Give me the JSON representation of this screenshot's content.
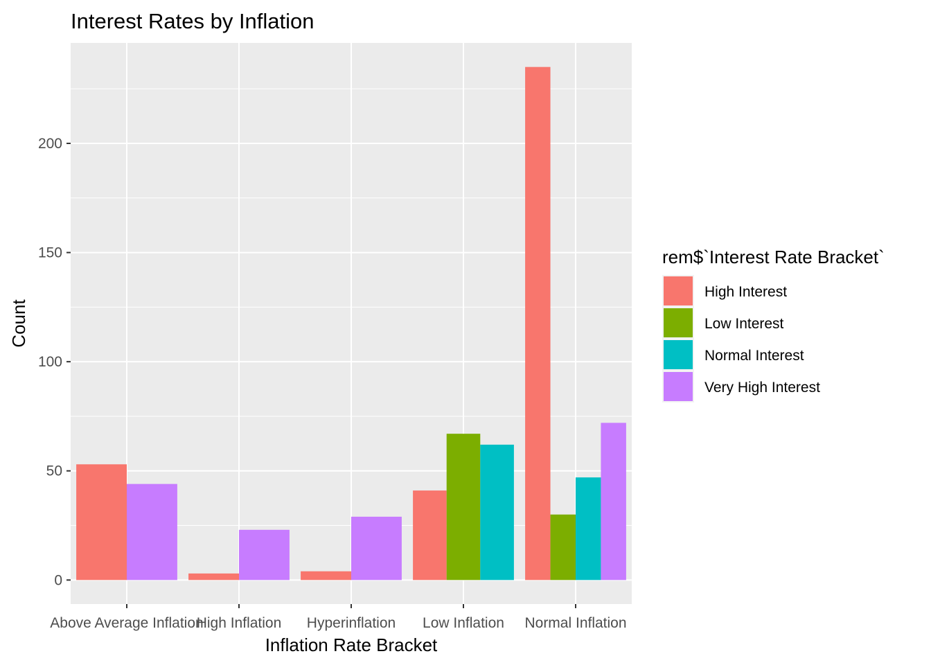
{
  "chart_data": {
    "type": "bar",
    "title": "Interest Rates by Inflation",
    "xlabel": "Inflation Rate Bracket",
    "ylabel": "Count",
    "ylim": [
      -11,
      246
    ],
    "yticks": [
      0,
      50,
      100,
      150,
      200
    ],
    "categories": [
      "Above Average Inflation",
      "High Inflation",
      "Hyperinflation",
      "Low Inflation",
      "Normal Inflation"
    ],
    "legend_title": "rem$`Interest Rate Bracket`",
    "legend_position": "right",
    "grid": true,
    "series": [
      {
        "name": "High Interest",
        "color": "#F8766D",
        "values": [
          53,
          3,
          4,
          41,
          235
        ]
      },
      {
        "name": "Low Interest",
        "color": "#7CAE00",
        "values": [
          null,
          null,
          null,
          67,
          30
        ]
      },
      {
        "name": "Normal Interest",
        "color": "#00BFC4",
        "values": [
          null,
          null,
          null,
          62,
          47
        ]
      },
      {
        "name": "Very High Interest",
        "color": "#C77CFF",
        "values": [
          44,
          23,
          29,
          null,
          72
        ]
      }
    ]
  }
}
